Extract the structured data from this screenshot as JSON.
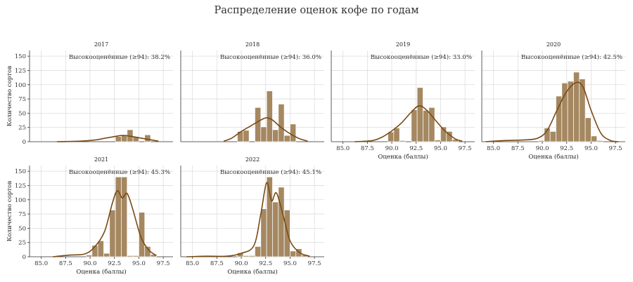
{
  "page_title": "Распределение оценок кофе по годам",
  "chart_data": {
    "type": "histogram",
    "title": "Распределение оценок кофе по годам",
    "xlabel": "Оценка (баллы)",
    "ylabel": "Количество сортов",
    "xlim": [
      83.8,
      98.5
    ],
    "xticks": [
      "85.0",
      "87.5",
      "90.0",
      "92.5",
      "95.0",
      "97.5"
    ],
    "ylim": [
      0,
      160
    ],
    "yticks": [
      "0",
      "25",
      "50",
      "75",
      "100",
      "125",
      "150"
    ],
    "bin_width": 0.6,
    "grid": true,
    "colors": {
      "bar": "#a58861",
      "bar_edge": "#ffffff",
      "kde": "#7a4a14",
      "grid": "#dddddd"
    },
    "panels": [
      {
        "year": "2017",
        "annotation": "Высокооценённые (≥94): 38.2%",
        "bars": [
          [
            92.6,
            9
          ],
          [
            93.2,
            12
          ],
          [
            93.8,
            21
          ],
          [
            94.4,
            9
          ],
          [
            95.6,
            12
          ]
        ],
        "kde": [
          [
            86.6,
            0
          ],
          [
            89,
            1
          ],
          [
            90.5,
            3
          ],
          [
            91.5,
            6
          ],
          [
            92.5,
            9
          ],
          [
            93.3,
            11
          ],
          [
            94,
            10
          ],
          [
            95,
            7
          ],
          [
            96,
            4
          ],
          [
            97,
            1
          ]
        ]
      },
      {
        "year": "2018",
        "annotation": "Высокооценённые (≥94): 36.0%",
        "bars": [
          [
            89.6,
            18
          ],
          [
            90.2,
            20
          ],
          [
            91.4,
            60
          ],
          [
            92.0,
            26
          ],
          [
            92.6,
            89
          ],
          [
            93.2,
            21
          ],
          [
            93.8,
            66
          ],
          [
            94.4,
            11
          ],
          [
            95.0,
            31
          ]
        ],
        "kde": [
          [
            88.2,
            1
          ],
          [
            89,
            6
          ],
          [
            90,
            18
          ],
          [
            91,
            28
          ],
          [
            92,
            38
          ],
          [
            92.6,
            42
          ],
          [
            93.2,
            38
          ],
          [
            94,
            26
          ],
          [
            95,
            14
          ],
          [
            96,
            5
          ],
          [
            96.8,
            1
          ]
        ]
      },
      {
        "year": "2019",
        "annotation": "Высокооценённые (≥94): 33.0%",
        "bars": [
          [
            89.6,
            17
          ],
          [
            90.2,
            24
          ],
          [
            90.8,
            2
          ],
          [
            91.4,
            0
          ],
          [
            92.0,
            56
          ],
          [
            92.6,
            95
          ],
          [
            93.2,
            55
          ],
          [
            93.8,
            60
          ],
          [
            94.4,
            3
          ],
          [
            95.0,
            26
          ],
          [
            95.6,
            18
          ],
          [
            96.2,
            4
          ]
        ],
        "kde": [
          [
            86.2,
            0
          ],
          [
            88,
            2
          ],
          [
            89,
            8
          ],
          [
            90,
            19
          ],
          [
            91,
            33
          ],
          [
            92,
            52
          ],
          [
            92.8,
            63
          ],
          [
            93.6,
            55
          ],
          [
            94.5,
            37
          ],
          [
            95.5,
            18
          ],
          [
            96.5,
            5
          ],
          [
            97.2,
            1
          ]
        ]
      },
      {
        "year": "2020",
        "annotation": "Высокооценённые (≥94): 42.5%",
        "bars": [
          [
            89.6,
            2
          ],
          [
            90.2,
            24
          ],
          [
            90.8,
            18
          ],
          [
            91.4,
            80
          ],
          [
            92.0,
            103
          ],
          [
            92.6,
            106
          ],
          [
            93.2,
            122
          ],
          [
            93.8,
            110
          ],
          [
            94.4,
            42
          ],
          [
            95.0,
            10
          ],
          [
            95.6,
            2
          ]
        ],
        "kde": [
          [
            84.2,
            0
          ],
          [
            86,
            2
          ],
          [
            88,
            3
          ],
          [
            89.5,
            6
          ],
          [
            90.5,
            20
          ],
          [
            91.5,
            55
          ],
          [
            92.5,
            88
          ],
          [
            93.5,
            104
          ],
          [
            94.2,
            95
          ],
          [
            95,
            55
          ],
          [
            96,
            15
          ],
          [
            97,
            2
          ],
          [
            97.8,
            0
          ]
        ]
      },
      {
        "year": "2021",
        "annotation": "Высокооценённые (≥94): 45.3%",
        "bars": [
          [
            89.6,
            3
          ],
          [
            90.2,
            20
          ],
          [
            90.8,
            28
          ],
          [
            91.4,
            6
          ],
          [
            92.0,
            82
          ],
          [
            92.6,
            140
          ],
          [
            93.2,
            140
          ],
          [
            93.8,
            2
          ],
          [
            94.4,
            2
          ],
          [
            95.0,
            78
          ],
          [
            95.6,
            18
          ],
          [
            96.2,
            4
          ]
        ],
        "kde": [
          [
            86.2,
            0
          ],
          [
            88,
            3
          ],
          [
            89.5,
            5
          ],
          [
            90.5,
            18
          ],
          [
            91.5,
            45
          ],
          [
            92.3,
            95
          ],
          [
            92.8,
            116
          ],
          [
            93.3,
            103
          ],
          [
            93.8,
            111
          ],
          [
            94.4,
            82
          ],
          [
            95.2,
            35
          ],
          [
            96,
            12
          ],
          [
            96.8,
            2
          ]
        ]
      },
      {
        "year": "2022",
        "annotation": "Высокооценённые (≥94): 45.1%",
        "bars": [
          [
            89.6,
            7
          ],
          [
            90.2,
            2
          ],
          [
            90.8,
            2
          ],
          [
            91.4,
            18
          ],
          [
            92.0,
            84
          ],
          [
            92.6,
            140
          ],
          [
            93.2,
            96
          ],
          [
            93.8,
            122
          ],
          [
            94.4,
            82
          ],
          [
            95.0,
            10
          ],
          [
            95.6,
            14
          ],
          [
            96.2,
            3
          ]
        ],
        "kde": [
          [
            84.4,
            0
          ],
          [
            86.5,
            1
          ],
          [
            88.5,
            1
          ],
          [
            90,
            6
          ],
          [
            91.3,
            20
          ],
          [
            92,
            75
          ],
          [
            92.6,
            130
          ],
          [
            93.1,
            98
          ],
          [
            93.6,
            112
          ],
          [
            94.3,
            72
          ],
          [
            95,
            28
          ],
          [
            96,
            7
          ],
          [
            97,
            1
          ]
        ]
      }
    ]
  }
}
